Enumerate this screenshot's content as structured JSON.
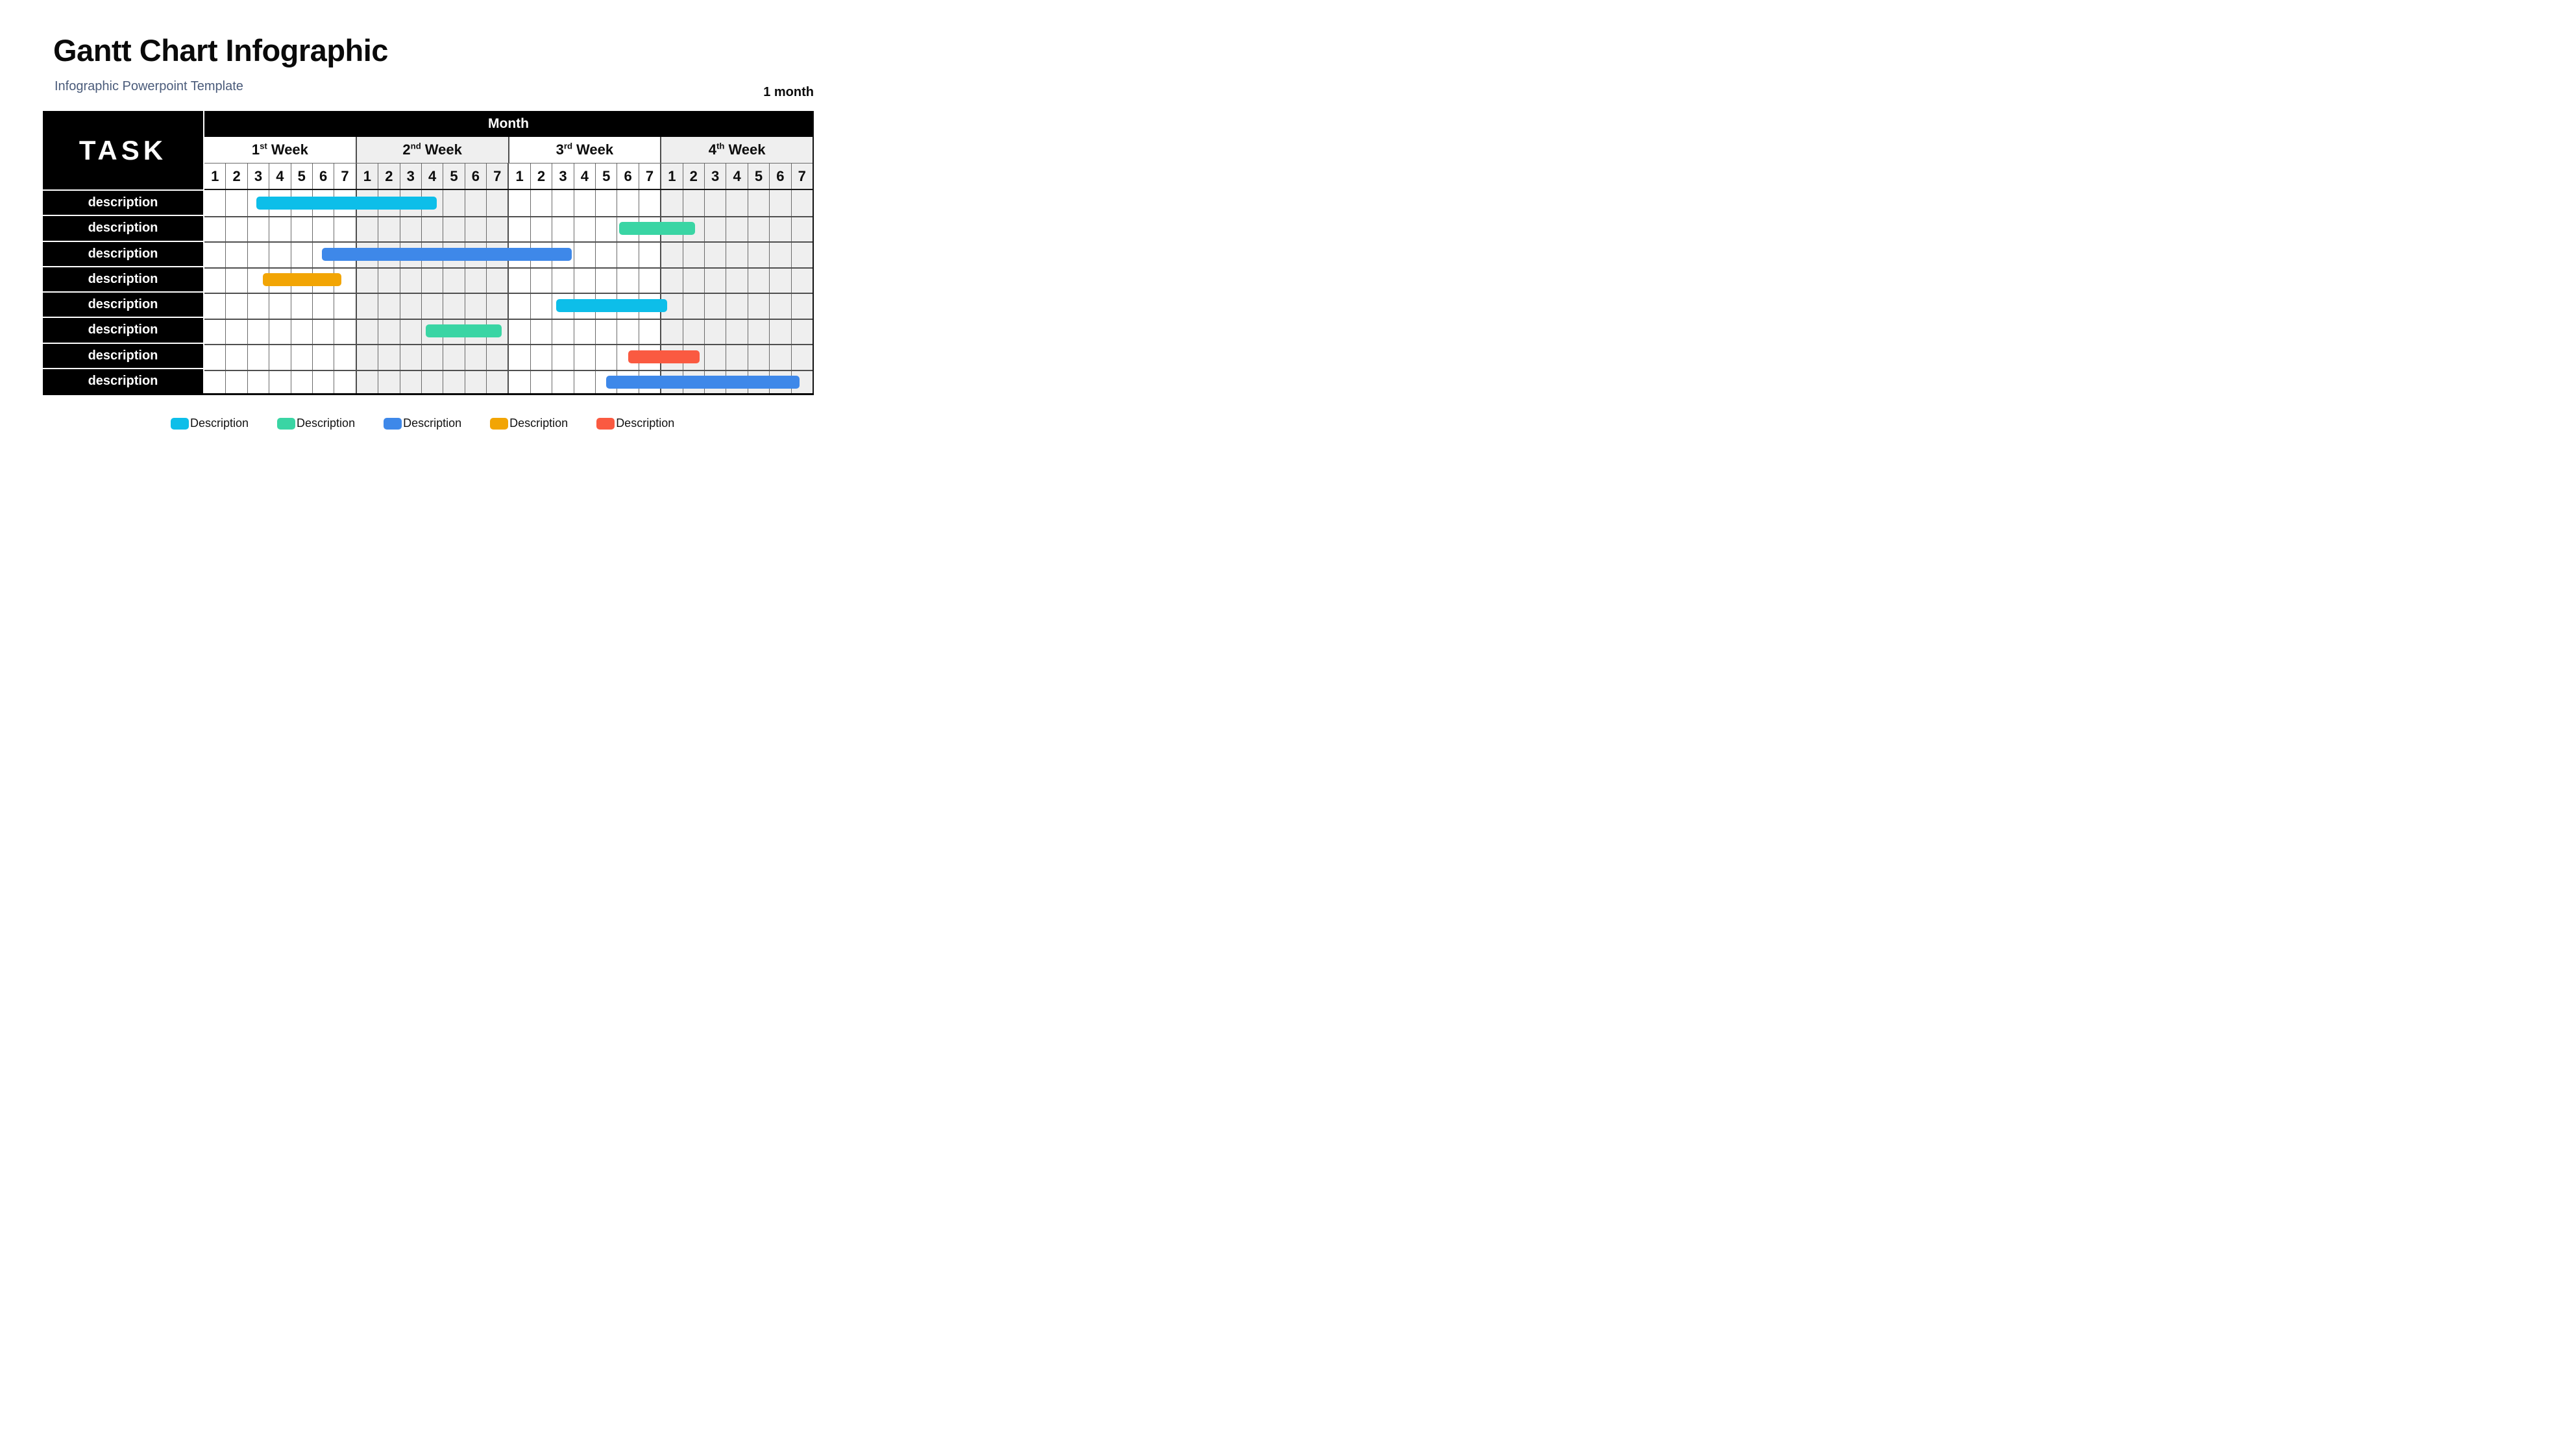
{
  "header": {
    "title": "Gantt Chart Infographic",
    "subtitle": "Infographic Powerpoint Template",
    "duration_label": "1 month"
  },
  "table": {
    "task_column_header": "TASK",
    "month_header": "Month",
    "weeks": [
      {
        "num": "1",
        "ord": "st",
        "word": "Week"
      },
      {
        "num": "2",
        "ord": "nd",
        "word": "Week"
      },
      {
        "num": "3",
        "ord": "rd",
        "word": "Week"
      },
      {
        "num": "4",
        "ord": "th",
        "word": "Week"
      }
    ],
    "days_per_week": 7,
    "day_labels": [
      "1",
      "2",
      "3",
      "4",
      "5",
      "6",
      "7"
    ],
    "tasks": [
      "description",
      "description",
      "description",
      "description",
      "description",
      "description",
      "description",
      "description"
    ]
  },
  "chart_data": {
    "type": "gantt",
    "title": "Gantt Chart Infographic",
    "x_axis": {
      "group_label": "Month",
      "weeks": [
        "1st Week",
        "2nd Week",
        "3rd Week",
        "4th Week"
      ],
      "days_per_week": 7,
      "total_days": 28,
      "shaded_weeks": [
        2,
        4
      ]
    },
    "y_axis": {
      "label": "TASK",
      "rows": [
        "description",
        "description",
        "description",
        "description",
        "description",
        "description",
        "description",
        "description"
      ]
    },
    "bars": [
      {
        "task_row": 1,
        "color_name": "cyan",
        "hex": "#0DBEE9",
        "start_day": 2.4,
        "end_day": 10.7
      },
      {
        "task_row": 2,
        "color_name": "green",
        "hex": "#3AD5A4",
        "start_day": 19.1,
        "end_day": 22.6
      },
      {
        "task_row": 3,
        "color_name": "blue",
        "hex": "#3E88E9",
        "start_day": 5.4,
        "end_day": 16.9
      },
      {
        "task_row": 4,
        "color_name": "orange",
        "hex": "#F2A504",
        "start_day": 2.7,
        "end_day": 6.3
      },
      {
        "task_row": 5,
        "color_name": "cyan",
        "hex": "#0DBEE9",
        "start_day": 16.2,
        "end_day": 21.3
      },
      {
        "task_row": 6,
        "color_name": "green",
        "hex": "#3AD5A4",
        "start_day": 10.2,
        "end_day": 13.7
      },
      {
        "task_row": 7,
        "color_name": "red",
        "hex": "#FA5A41",
        "start_day": 19.5,
        "end_day": 22.8
      },
      {
        "task_row": 8,
        "color_name": "blue",
        "hex": "#3E88E9",
        "start_day": 18.5,
        "end_day": 27.4
      }
    ]
  },
  "legend": {
    "items": [
      {
        "label": "Description",
        "color": "#0DBEE9",
        "color_name": "cyan"
      },
      {
        "label": "Description",
        "color": "#3AD5A4",
        "color_name": "green"
      },
      {
        "label": "Description",
        "color": "#3E88E9",
        "color_name": "blue"
      },
      {
        "label": "Description",
        "color": "#F2A504",
        "color_name": "orange"
      },
      {
        "label": "Description",
        "color": "#FA5A41",
        "color_name": "red"
      }
    ]
  },
  "colors": {
    "accent_subtitle": "#4A5B7A",
    "header_fill": "#000000",
    "week_shading": "#EFEFEF",
    "day_line": "#6A6A6A",
    "week_line": "#4D4D4D",
    "row_line": "#4F4F4F"
  }
}
